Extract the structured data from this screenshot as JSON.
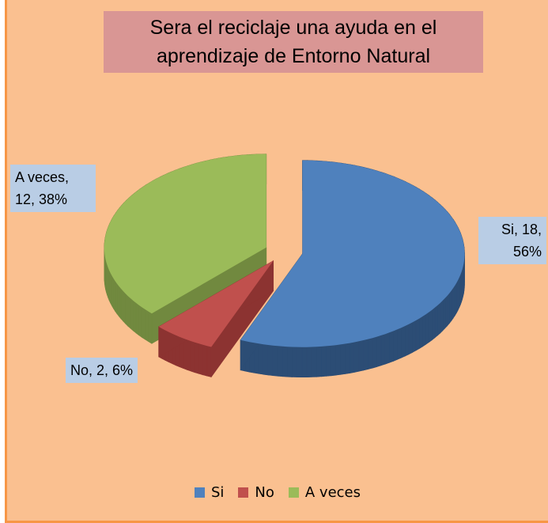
{
  "chart_data": {
    "type": "pie3d",
    "title": "Sera el reciclaje una ayuda en el aprendizaje de Entorno Natural",
    "categories": [
      "Si",
      "No",
      "A veces"
    ],
    "values": [
      18,
      2,
      12
    ],
    "value_labels": [
      "Si, 18, 56%",
      "No, 2, 6%",
      "A veces, 12, 38%"
    ],
    "colors": [
      "#4f81bd",
      "#c0504d",
      "#9bbb59"
    ],
    "side_colors": [
      "#2c4d75",
      "#8c3331",
      "#71893f"
    ],
    "legend": "bottom"
  }
}
